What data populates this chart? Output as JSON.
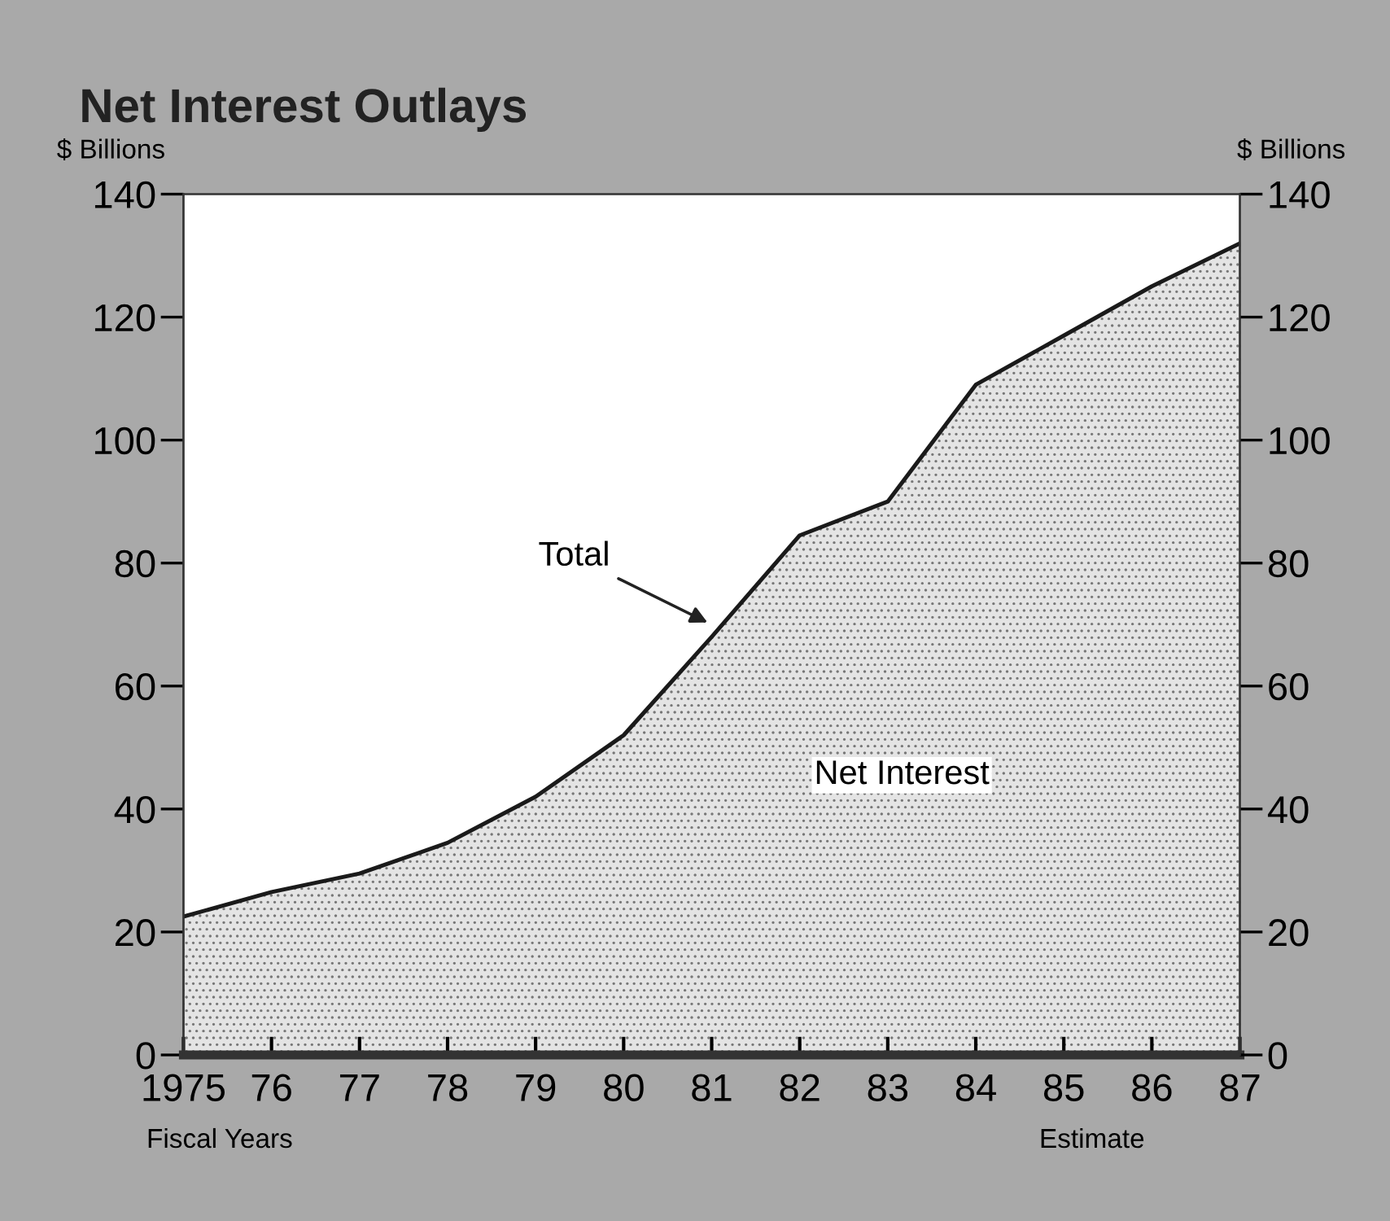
{
  "chart_data": {
    "type": "area",
    "title": "Net Interest Outlays",
    "ylabel": "$ Billions",
    "y2label": "$ Billions",
    "xlabel": "Fiscal Years",
    "categories": [
      "1975",
      "76",
      "77",
      "78",
      "79",
      "80",
      "81",
      "82",
      "83",
      "84",
      "85",
      "86",
      "87"
    ],
    "series": [
      {
        "color": "#1a1a1a",
        "values": [
          22.5,
          26.5,
          29.5,
          34.5,
          42,
          52,
          68,
          84.5,
          90,
          109,
          117,
          125,
          132
        ]
      }
    ],
    "ylim": [
      0,
      140
    ],
    "yticks": [
      0,
      20,
      40,
      60,
      80,
      100,
      120,
      140
    ],
    "y2lim": [
      0,
      140
    ],
    "y2ticks": [
      0,
      20,
      40,
      60,
      80,
      100,
      120,
      140
    ],
    "annotations": [
      {
        "text": "Total",
        "x": "81",
        "y": 70
      },
      "Net Interest",
      "Estimate"
    ],
    "grid": false,
    "legend": false
  }
}
